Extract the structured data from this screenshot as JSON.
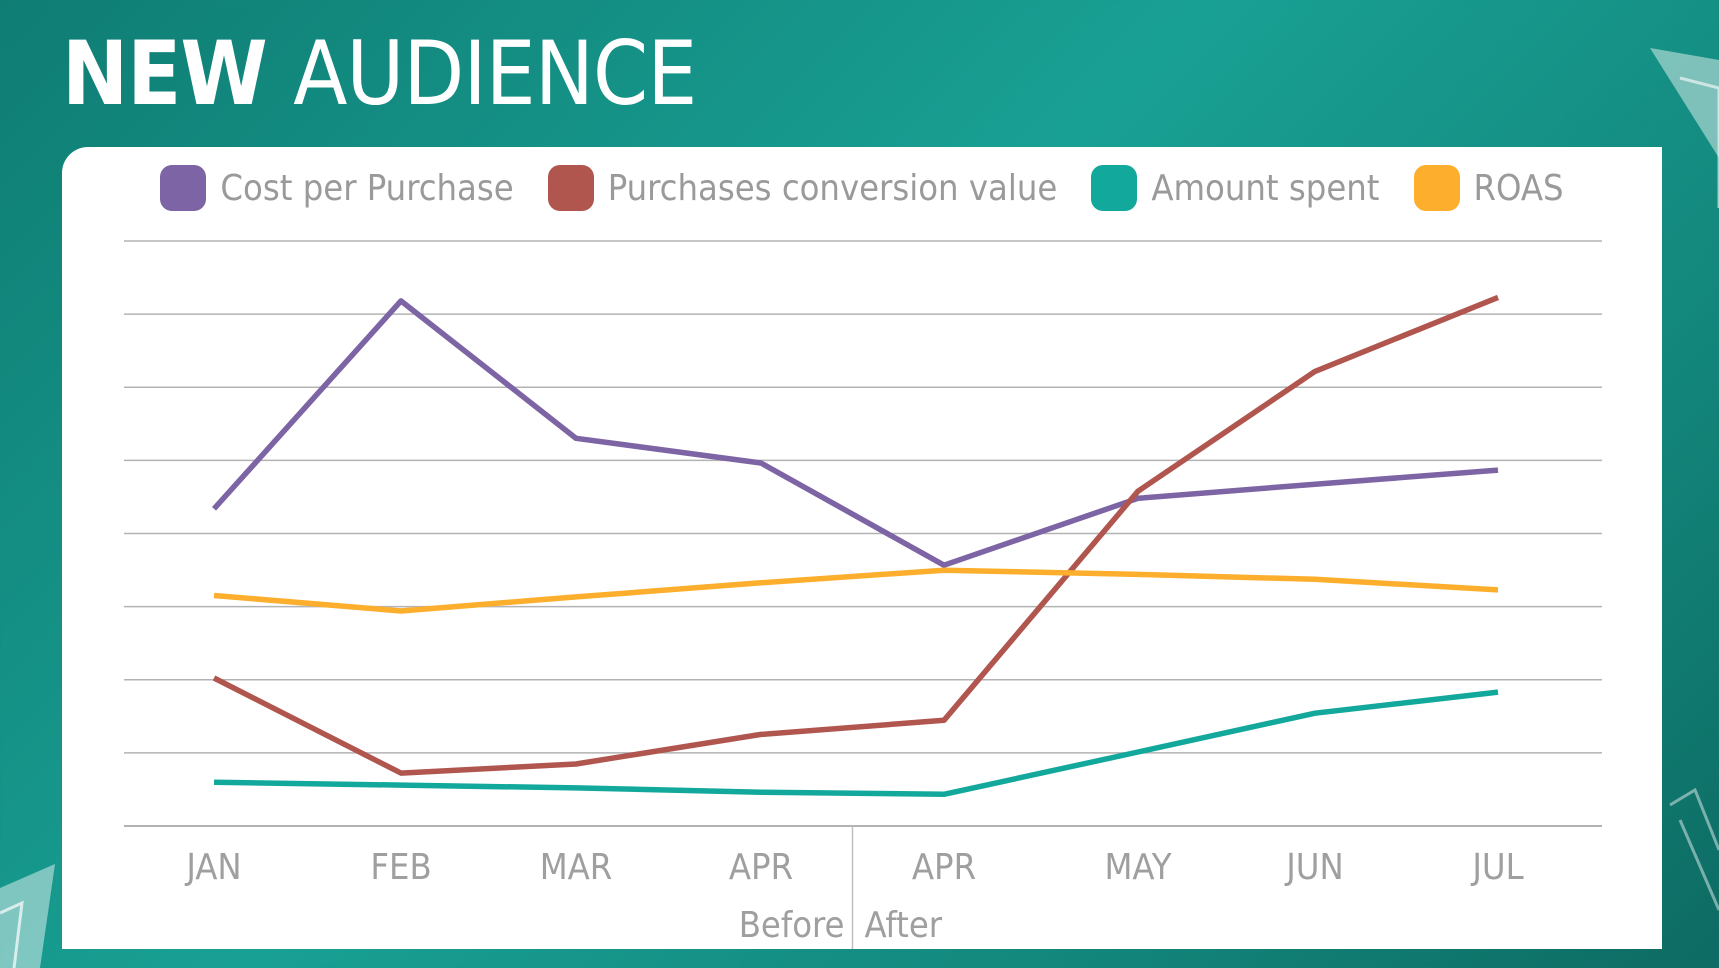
{
  "header": {
    "title_bold": "NEW",
    "title_rest": "AUDIENCE"
  },
  "colors": {
    "background": "#16998d",
    "cost_per_purchase": "#7d64a4",
    "purchases_conversion_value": "#b0564f",
    "amount_spent": "#13a89c",
    "roas": "#fcae2c",
    "grid": "#b3b3b3",
    "axis_text": "#9f9f9f"
  },
  "chart_data": {
    "type": "line",
    "categories": [
      "JAN",
      "FEB",
      "MAR",
      "APR",
      "APR",
      "MAY",
      "JUN",
      "JUL"
    ],
    "period_labels": {
      "before": "Before",
      "after": "After"
    },
    "ylim": [
      0,
      8.3
    ],
    "gridlines": 9,
    "y_axis_labels": false,
    "legend": "top",
    "series": [
      {
        "name": "Cost per Purchase",
        "color": "#7d64a4",
        "values": [
          4.5,
          7.45,
          5.5,
          5.15,
          3.7,
          4.65,
          4.85,
          5.05
        ]
      },
      {
        "name": "Purchases conversion value",
        "color": "#b0564f",
        "values": [
          2.1,
          0.75,
          0.88,
          1.3,
          1.5,
          4.75,
          6.45,
          7.5
        ]
      },
      {
        "name": "Amount spent",
        "color": "#13a89c",
        "values": [
          0.62,
          0.58,
          0.54,
          0.48,
          0.45,
          1.05,
          1.6,
          1.9
        ]
      },
      {
        "name": "ROAS",
        "color": "#fcae2c",
        "values": [
          3.27,
          3.05,
          3.25,
          3.45,
          3.63,
          3.57,
          3.5,
          3.35
        ]
      }
    ]
  }
}
